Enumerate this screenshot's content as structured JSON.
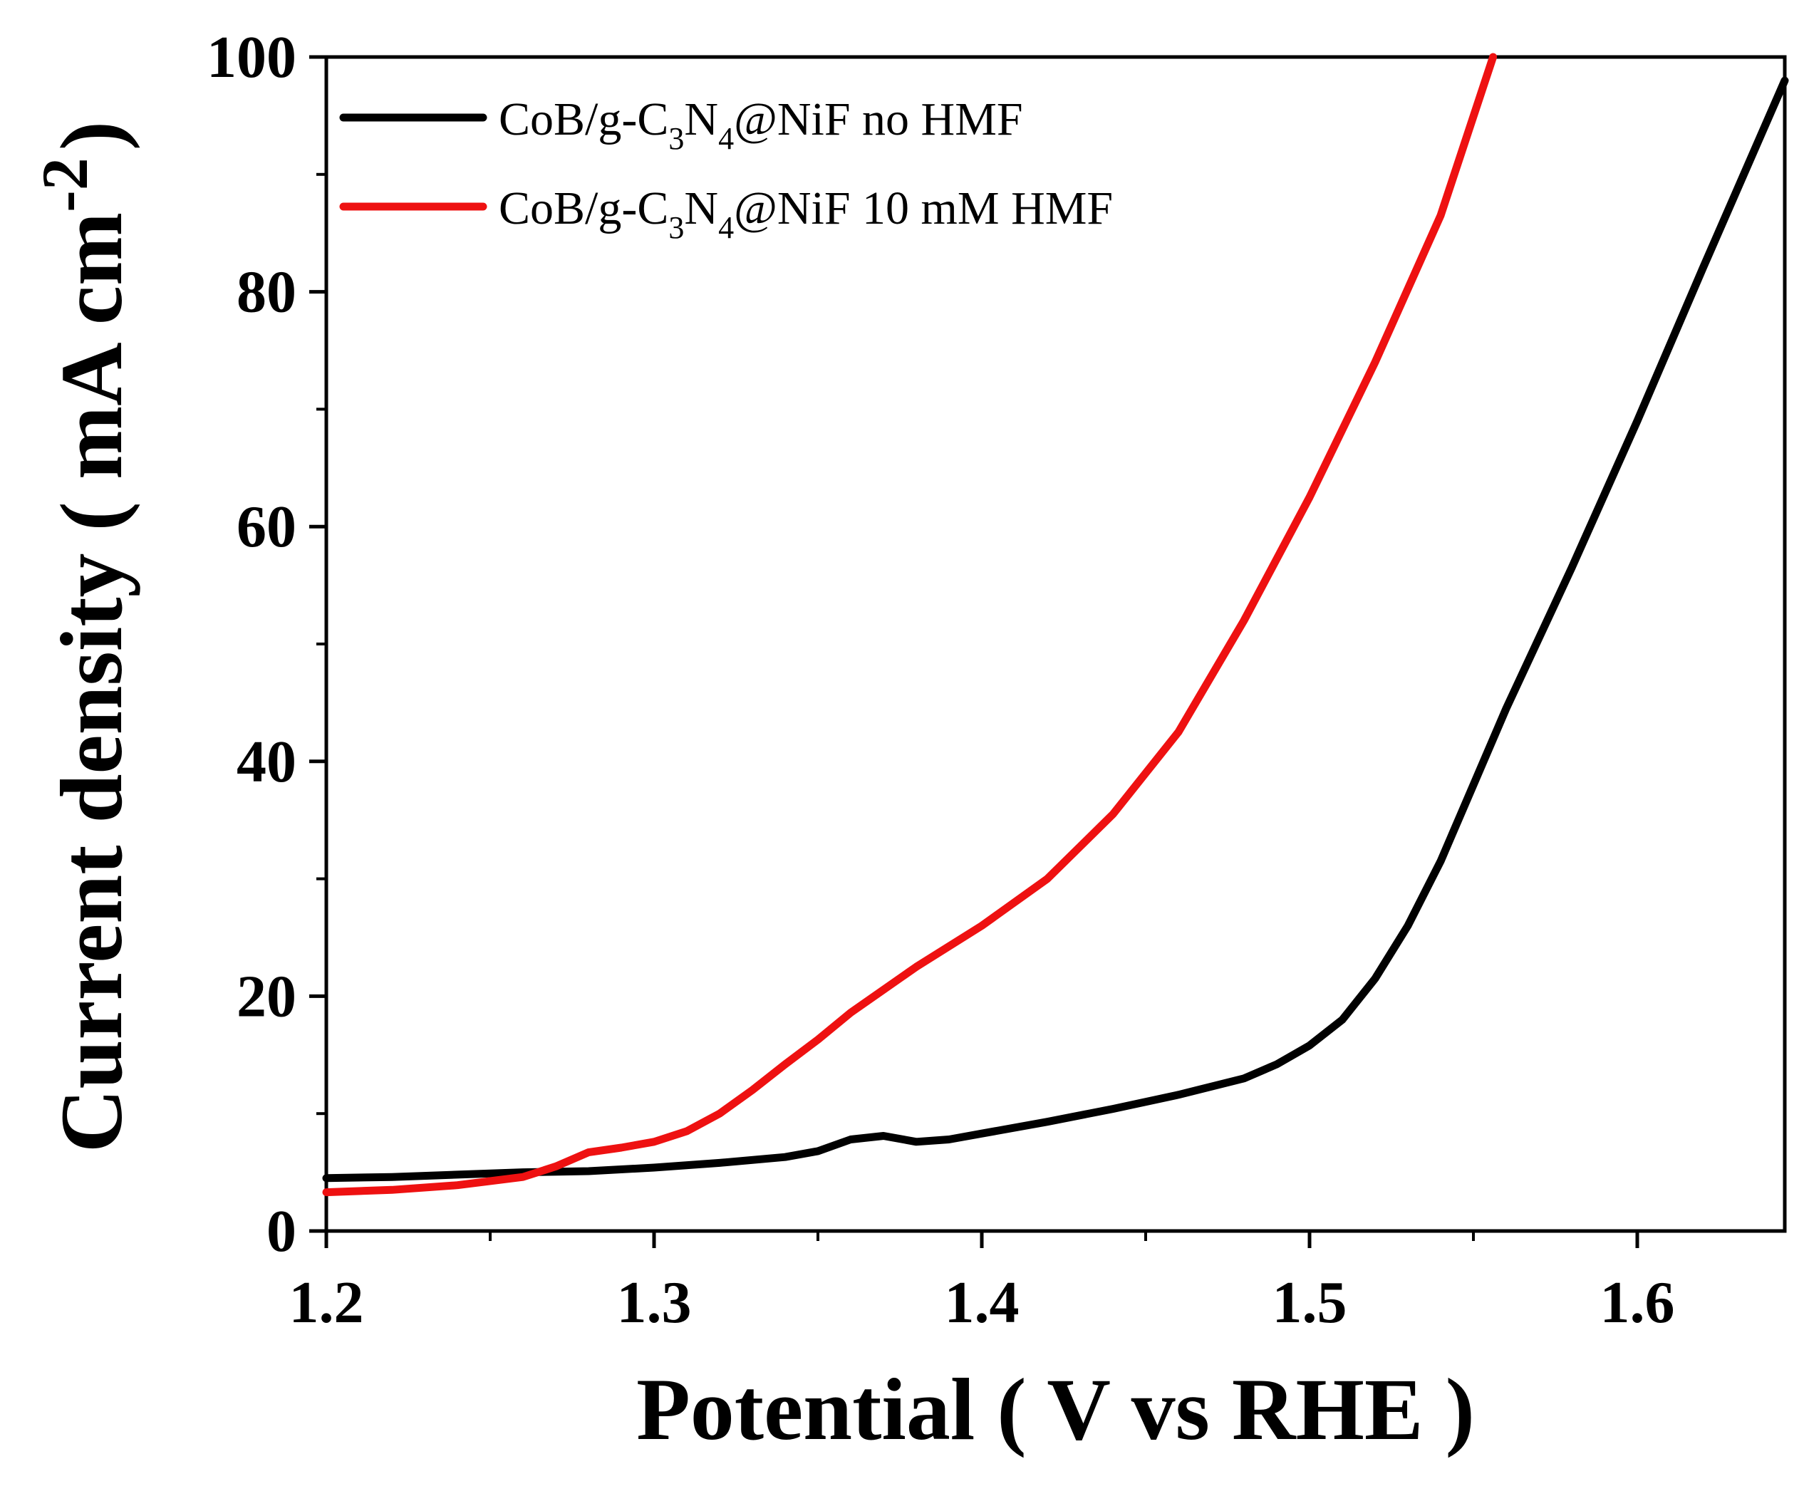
{
  "chart_data": {
    "type": "line",
    "title": "",
    "xlabel": "Potential ( V vs RHE )",
    "ylabel": {
      "text": "Current density ( mA cm",
      "superscript": "-2",
      "close": ")"
    },
    "xlim": [
      1.2,
      1.645
    ],
    "ylim": [
      0,
      100
    ],
    "x_ticks": [
      1.2,
      1.3,
      1.4,
      1.5,
      1.6
    ],
    "x_tick_labels": [
      "1.2",
      "1.3",
      "1.4",
      "1.5",
      "1.6"
    ],
    "x_minor_ticks": [
      1.25,
      1.35,
      1.45,
      1.55
    ],
    "y_ticks": [
      0,
      20,
      40,
      60,
      80,
      100
    ],
    "y_tick_labels": [
      "0",
      "20",
      "40",
      "60",
      "80",
      "100"
    ],
    "y_minor_ticks": [
      10,
      30,
      50,
      70,
      90
    ],
    "grid": false,
    "legend_position": "top-left",
    "series": [
      {
        "name": "CoB/g-C3N4@NiF no HMF",
        "label_parts": {
          "pre": "CoB/g-C",
          "sub1": "3",
          "mid": "N",
          "sub2": "4",
          "post": "@NiF no HMF"
        },
        "color": "#000000",
        "points": [
          [
            1.2,
            4.5
          ],
          [
            1.22,
            4.6
          ],
          [
            1.24,
            4.8
          ],
          [
            1.26,
            5.0
          ],
          [
            1.28,
            5.1
          ],
          [
            1.3,
            5.4
          ],
          [
            1.32,
            5.8
          ],
          [
            1.34,
            6.3
          ],
          [
            1.35,
            6.8
          ],
          [
            1.36,
            7.8
          ],
          [
            1.37,
            8.1
          ],
          [
            1.38,
            7.6
          ],
          [
            1.39,
            7.8
          ],
          [
            1.4,
            8.3
          ],
          [
            1.42,
            9.3
          ],
          [
            1.44,
            10.4
          ],
          [
            1.46,
            11.6
          ],
          [
            1.48,
            13.0
          ],
          [
            1.49,
            14.2
          ],
          [
            1.5,
            15.8
          ],
          [
            1.51,
            18.0
          ],
          [
            1.52,
            21.5
          ],
          [
            1.53,
            26.0
          ],
          [
            1.54,
            31.5
          ],
          [
            1.55,
            38.0
          ],
          [
            1.56,
            44.5
          ],
          [
            1.58,
            56.5
          ],
          [
            1.6,
            69.0
          ],
          [
            1.62,
            82.0
          ],
          [
            1.645,
            98.0
          ]
        ]
      },
      {
        "name": "CoB/g-C3N4@NiF 10 mM HMF",
        "label_parts": {
          "pre": "CoB/g-C",
          "sub1": "3",
          "mid": "N",
          "sub2": "4",
          "post": "@NiF 10 mM HMF"
        },
        "color": "#ee1111",
        "points": [
          [
            1.2,
            3.3
          ],
          [
            1.22,
            3.5
          ],
          [
            1.24,
            3.9
          ],
          [
            1.26,
            4.6
          ],
          [
            1.27,
            5.5
          ],
          [
            1.28,
            6.7
          ],
          [
            1.29,
            7.1
          ],
          [
            1.3,
            7.6
          ],
          [
            1.31,
            8.5
          ],
          [
            1.32,
            10.0
          ],
          [
            1.33,
            12.0
          ],
          [
            1.34,
            14.2
          ],
          [
            1.35,
            16.3
          ],
          [
            1.36,
            18.6
          ],
          [
            1.38,
            22.5
          ],
          [
            1.4,
            26.0
          ],
          [
            1.42,
            30.0
          ],
          [
            1.44,
            35.5
          ],
          [
            1.46,
            42.5
          ],
          [
            1.48,
            52.0
          ],
          [
            1.5,
            62.5
          ],
          [
            1.52,
            74.0
          ],
          [
            1.54,
            86.5
          ],
          [
            1.556,
            100.0
          ]
        ]
      }
    ]
  }
}
